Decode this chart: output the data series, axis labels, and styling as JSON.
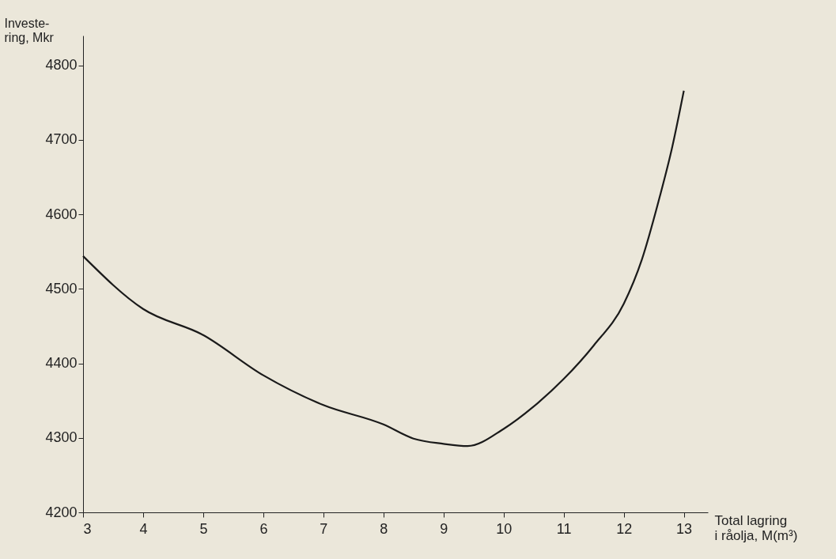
{
  "chart_data": {
    "type": "line",
    "xlabel": "Total lagring\ni råolja, M(m³)",
    "ylabel": "Investe-\nring, Mkr",
    "x": [
      3,
      4,
      5,
      6,
      7,
      8,
      8.5,
      9,
      9.4,
      10,
      10.5,
      11,
      11.5,
      12,
      12.3,
      12.6,
      12.8,
      13
    ],
    "series": [
      {
        "color": "#1a1a1a",
        "values": [
          4544,
          4473,
          4438,
          4384,
          4344,
          4318,
          4299,
          4292,
          4289,
          4312,
          4342,
          4379,
          4424,
          4480,
          4539,
          4624,
          4688,
          4766
        ]
      }
    ],
    "xlim": [
      3,
      13.4
    ],
    "ylim": [
      4200,
      4840
    ],
    "xticks": [
      3,
      4,
      5,
      6,
      7,
      8,
      9,
      10,
      11,
      12,
      13
    ],
    "yticks": [
      4200,
      4300,
      4400,
      4500,
      4600,
      4700,
      4800
    ],
    "grid": false,
    "legend": false,
    "marker": "none",
    "line_style": "solid"
  }
}
